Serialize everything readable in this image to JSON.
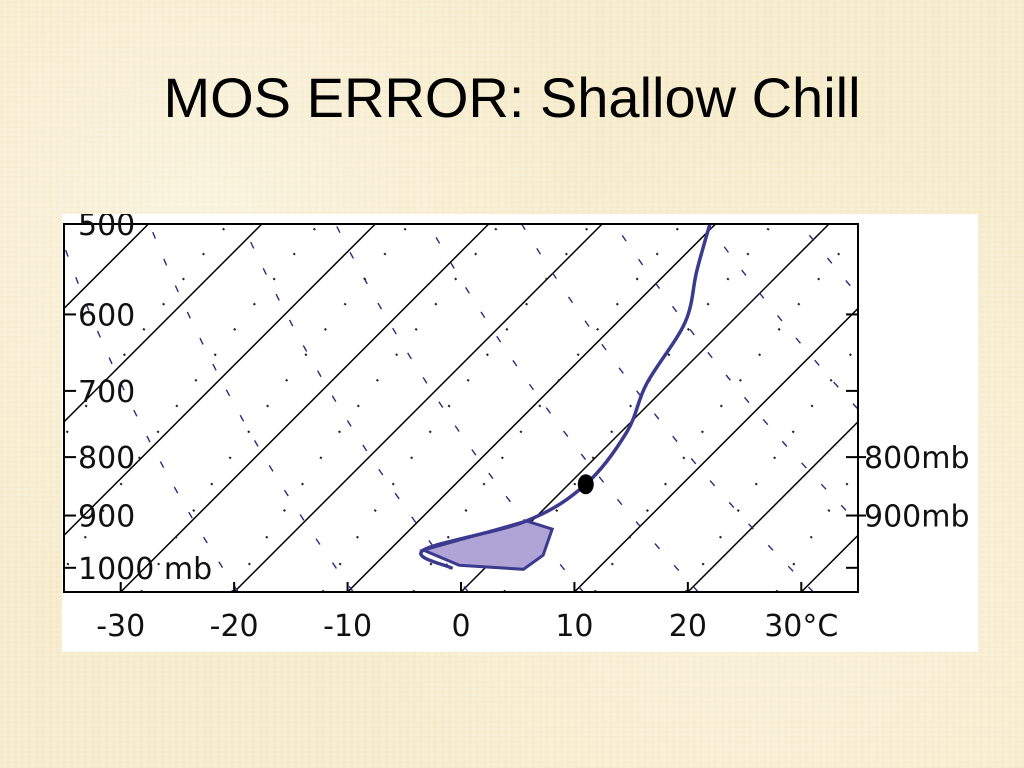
{
  "slide": {
    "title": "MOS ERROR: Shallow Chill"
  },
  "colors": {
    "background": "#f8edcd",
    "panel": "#ffffff",
    "profile_line": "#3b3a8e",
    "fill_area": "#b0a4d6",
    "isotherm": "#000000",
    "adiabat": "#2e2a7a",
    "mixing_ratio": "#222222"
  },
  "chart_data": {
    "type": "line",
    "title": "",
    "xlabel": "",
    "ylabel": "",
    "x_unit": "°C",
    "xlim": [
      -35,
      35
    ],
    "ylim": [
      1050,
      500
    ],
    "x_ticks": [
      {
        "value": -30,
        "label": "-30"
      },
      {
        "value": -20,
        "label": "-20"
      },
      {
        "value": -10,
        "label": "-10"
      },
      {
        "value": 0,
        "label": "0"
      },
      {
        "value": 10,
        "label": "10"
      },
      {
        "value": 20,
        "label": "20"
      },
      {
        "value": 30,
        "label": "30°C"
      }
    ],
    "y_ticks": [
      {
        "value": 500,
        "label": "500"
      },
      {
        "value": 600,
        "label": "600"
      },
      {
        "value": 700,
        "label": "700"
      },
      {
        "value": 800,
        "label": "800"
      },
      {
        "value": 900,
        "label": "900"
      },
      {
        "value": 1000,
        "label": "1000 mb"
      }
    ],
    "isotherms": [
      -60,
      -50,
      -40,
      -30,
      -20,
      -10,
      0,
      10,
      20,
      30
    ],
    "series": [
      {
        "points": [
          {
            "x": -10.5,
            "y": 500
          },
          {
            "x": -7.5,
            "y": 550
          },
          {
            "x": -4,
            "y": 610
          },
          {
            "x": -2,
            "y": 690
          },
          {
            "x": 0.5,
            "y": 760
          },
          {
            "x": 1.5,
            "y": 845
          },
          {
            "x": -0.5,
            "y": 910
          },
          {
            "x": -7,
            "y": 965
          },
          {
            "x": -3,
            "y": 1000
          }
        ]
      }
    ],
    "filled_region": {
      "points": [
        {
          "x": -0.5,
          "y": 910
        },
        {
          "x": -7,
          "y": 965
        },
        {
          "x": -2.5,
          "y": 995
        },
        {
          "x": 3.5,
          "y": 1003
        },
        {
          "x": 4,
          "y": 975
        },
        {
          "x": 2.5,
          "y": 925
        }
      ]
    },
    "marker": {
      "x": 1.5,
      "y": 845
    },
    "reference_levels": [
      {
        "value": 800,
        "label": "800mb"
      },
      {
        "value": 900,
        "label": "900mb"
      }
    ],
    "grid": false,
    "legend": "none"
  }
}
